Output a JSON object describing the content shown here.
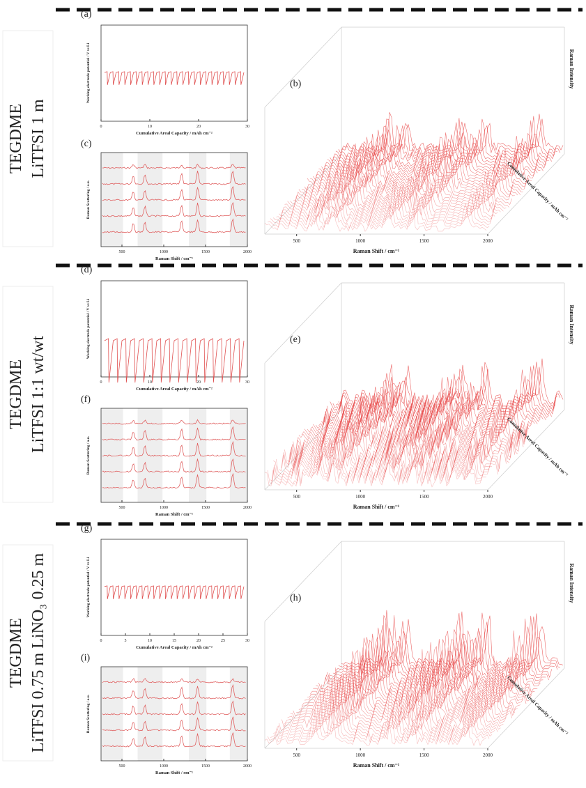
{
  "rows": [
    {
      "label": [
        "TEGDME",
        "LiTFSI 1 m"
      ],
      "voltage": {
        "panel": "(a)",
        "x_title": "Cumulative Areal Capacity / mAh cm⁻²",
        "y_title": "Working electrode potential / V vs Li",
        "xticks": [
          0,
          10,
          20,
          30
        ]
      },
      "raman": {
        "panel": "(c)",
        "x_title": "Raman Shift / cm⁻¹",
        "y_title": "Raman Scattering / a.u.",
        "xticks": [
          500,
          1000,
          1500,
          2000
        ]
      },
      "map": {
        "panel": "(b)",
        "x_title": "Raman Shift / cm⁻¹",
        "z_title": "Raman Intensity",
        "depth_title": "Cumulative Areal Capacity / mAh cm⁻²",
        "xticks": [
          500,
          1000,
          1500,
          2000
        ]
      }
    },
    {
      "label": [
        "TEGDME",
        "LiTFSI 1:1 wt/wt"
      ],
      "voltage": {
        "panel": "(d)",
        "x_title": "Cumulative Areal Capacity / mAh cm⁻²",
        "y_title": "Working electrode potential / V vs Li",
        "xticks": [
          0,
          10,
          20,
          30
        ]
      },
      "raman": {
        "panel": "(f)",
        "x_title": "Raman Shift / cm⁻¹",
        "y_title": "Raman Scattering / a.u.",
        "xticks": [
          500,
          1000,
          1500,
          2000
        ]
      },
      "map": {
        "panel": "(e)",
        "x_title": "Raman Shift / cm⁻¹",
        "z_title": "Raman Intensity",
        "depth_title": "Cumulative Areal Capacity / mAh cm⁻²",
        "xticks": [
          500,
          1000,
          1500,
          2000
        ]
      }
    },
    {
      "label": [
        "TEGDME",
        "LiTFSI 0.75 m LiNO₃ 0.25 m"
      ],
      "voltage": {
        "panel": "(g)",
        "x_title": "Cumulative Areal Capacity / mAh cm⁻²",
        "y_title": "Working electrode potential / V vs Li",
        "xticks": [
          0,
          5,
          10,
          15,
          20,
          25,
          30
        ]
      },
      "raman": {
        "panel": "(i)",
        "x_title": "Raman Shift / cm⁻¹",
        "y_title": "Raman Scattering / a.u.",
        "xticks": [
          500,
          1000,
          1500,
          2000
        ]
      },
      "map": {
        "panel": "(h)",
        "x_title": "Raman Shift / cm⁻¹",
        "z_title": "Raman Intensity",
        "depth_title": "Cumulative Areal Capacity / mAh cm⁻²",
        "xticks": [
          500,
          1000,
          1500,
          2000
        ]
      }
    }
  ]
}
